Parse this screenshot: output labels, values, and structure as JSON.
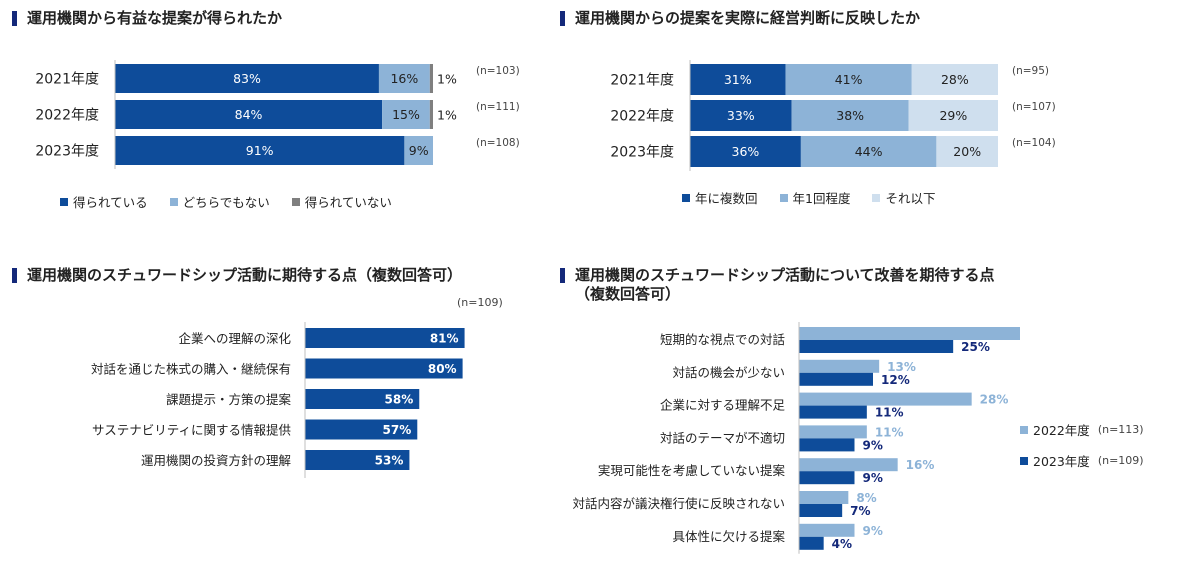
{
  "colors": {
    "dark_blue": "#0e4c9a",
    "mid_blue": "#8db3d7",
    "light_blue": "#cfdfee",
    "gray": "#7f7f7f",
    "title_mark": "#14297a"
  },
  "panel1": {
    "title": "運用機関から有益な提案が得られたか",
    "legend": [
      "得られている",
      "どちらでもない",
      "得られていない"
    ]
  },
  "panel2": {
    "title": "運用機関からの提案を実際に経営判断に反映したか",
    "legend": [
      "年に複数回",
      "年1回程度",
      "それ以下"
    ]
  },
  "panel3": {
    "title": "運用機関のスチュワードシップ活動に期待する点（複数回答可）",
    "n_label": "(n=109)"
  },
  "panel4": {
    "title": "運用機関のスチュワードシップ活動について改善を期待する点\n（複数回答可）",
    "legend": [
      {
        "label": "2022年度",
        "n": "(n=113)"
      },
      {
        "label": "2023年度",
        "n": "(n=109)"
      }
    ]
  },
  "chart_data": [
    {
      "type": "bar",
      "stacked": true,
      "orientation": "horizontal",
      "title": "運用機関から有益な提案が得られたか",
      "categories": [
        "2021年度",
        "2022年度",
        "2023年度"
      ],
      "n_labels": [
        "(n=103)",
        "(n=111)",
        "(n=108)"
      ],
      "series": [
        {
          "name": "得られている",
          "values": [
            83,
            84,
            91
          ],
          "labels": [
            "83%",
            "84%",
            "91%"
          ]
        },
        {
          "name": "どちらでもない",
          "values": [
            16,
            15,
            9
          ],
          "labels": [
            "16%",
            "15%",
            "9%"
          ]
        },
        {
          "name": "得られていない",
          "values": [
            1,
            1,
            0
          ],
          "labels": [
            "1%",
            "1%",
            ""
          ]
        }
      ],
      "xlim": [
        0,
        100
      ]
    },
    {
      "type": "bar",
      "stacked": true,
      "orientation": "horizontal",
      "title": "運用機関からの提案を実際に経営判断に反映したか",
      "categories": [
        "2021年度",
        "2022年度",
        "2023年度"
      ],
      "n_labels": [
        "(n=95)",
        "(n=107)",
        "(n=104)"
      ],
      "series": [
        {
          "name": "年に複数回",
          "values": [
            31,
            33,
            36
          ],
          "labels": [
            "31%",
            "33%",
            "36%"
          ]
        },
        {
          "name": "年1回程度",
          "values": [
            41,
            38,
            44
          ],
          "labels": [
            "41%",
            "38%",
            "44%"
          ]
        },
        {
          "name": "それ以下",
          "values": [
            28,
            29,
            20
          ],
          "labels": [
            "28%",
            "29%",
            "20%"
          ]
        }
      ],
      "xlim": [
        0,
        100
      ]
    },
    {
      "type": "bar",
      "orientation": "horizontal",
      "title": "運用機関のスチュワードシップ活動に期待する点（複数回答可）",
      "categories": [
        "企業への理解の深化",
        "対話を通じた株式の購入・継続保有",
        "課題提示・方策の提案",
        "サステナビリティに関する情報提供",
        "運用機関の投資方針の理解"
      ],
      "values": [
        81,
        80,
        58,
        57,
        53
      ],
      "labels": [
        "81%",
        "80%",
        "58%",
        "57%",
        "53%"
      ],
      "xlim": [
        0,
        100
      ]
    },
    {
      "type": "bar",
      "orientation": "horizontal",
      "title": "運用機関のスチュワードシップ活動について改善を期待する点（複数回答可）",
      "categories": [
        "短期的な視点での対話",
        "対話の機会が少ない",
        "企業に対する理解不足",
        "対話のテーマが不適切",
        "実現可能性を考慮していない提案",
        "対話内容が議決権行使に反映されない",
        "具体性に欠ける提案"
      ],
      "series": [
        {
          "name": "2022年度",
          "values": [
            36,
            13,
            28,
            11,
            16,
            8,
            9
          ],
          "labels": [
            "36%",
            "13%",
            "28%",
            "11%",
            "16%",
            "8%",
            "9%"
          ]
        },
        {
          "name": "2023年度",
          "values": [
            25,
            12,
            11,
            9,
            9,
            7,
            4
          ],
          "labels": [
            "25%",
            "12%",
            "11%",
            "9%",
            "9%",
            "7%",
            "4%"
          ]
        }
      ],
      "xlim": [
        0,
        60
      ]
    }
  ]
}
